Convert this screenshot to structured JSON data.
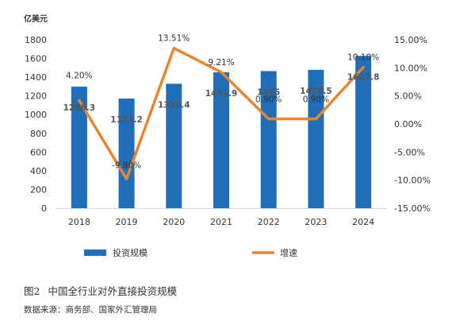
{
  "figure": {
    "number": "图2",
    "title": "中国全行业对外直接投资规模",
    "source": "数据来源：商务部、国家外汇管理局"
  },
  "chart_data": {
    "type": "bar",
    "unit_label": "亿美元",
    "categories": [
      "2018",
      "2019",
      "2020",
      "2021",
      "2022",
      "2023",
      "2024"
    ],
    "series": [
      {
        "name": "投资规模",
        "type": "bar",
        "axis": "left",
        "color": "#1F6EB7",
        "values": [
          1298.3,
          1171.2,
          1329.4,
          1451.9,
          1465,
          1478.5,
          1627.8
        ],
        "labels": [
          "1298.3",
          "1171.2",
          "1329.4",
          "1451.9",
          "1465",
          "1478.5",
          "1627.8"
        ]
      },
      {
        "name": "增速",
        "type": "line",
        "axis": "right",
        "color": "#E8862E",
        "values": [
          4.2,
          -9.8,
          13.51,
          9.21,
          0.9,
          0.9,
          10.1
        ],
        "labels": [
          "4.20%",
          "-9.80%",
          "13.51%",
          "9.21%",
          "0.90%",
          "0.90%",
          "10.10%"
        ]
      }
    ],
    "y_left": {
      "range": [
        0,
        1800
      ],
      "ticks": [
        "0",
        "200",
        "400",
        "600",
        "800",
        "1000",
        "1200",
        "1400",
        "1600",
        "1800"
      ]
    },
    "y_right": {
      "range": [
        -15,
        15
      ],
      "ticks": [
        "-15.00%",
        "-10.00%",
        "-5.00%",
        "0.00%",
        "5.00%",
        "10.00%",
        "15.00%"
      ]
    },
    "grid": false,
    "legend_position": "bottom"
  }
}
